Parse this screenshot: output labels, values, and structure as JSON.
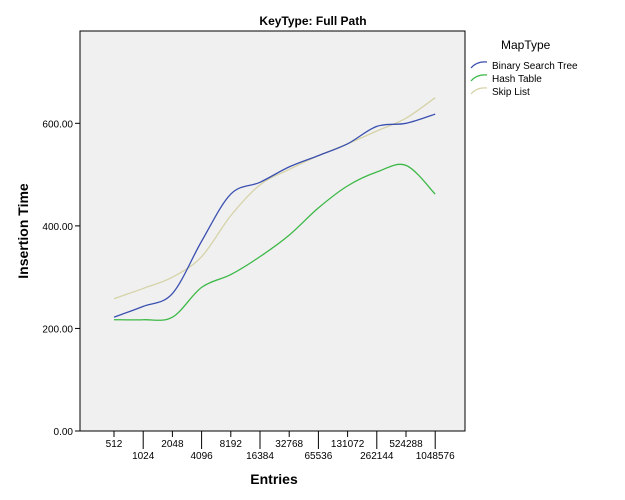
{
  "chart_data": {
    "type": "line",
    "title": "KeyType: Full Path",
    "xlabel": "Entries",
    "ylabel": "Insertion Time",
    "categories": [
      "512",
      "1024",
      "2048",
      "4096",
      "8192",
      "16384",
      "32768",
      "65536",
      "131072",
      "262144",
      "524288",
      "1048576"
    ],
    "ylim": [
      0,
      780
    ],
    "yticks": [
      "0.00",
      "200.00",
      "400.00",
      "600.00"
    ],
    "ytick_values": [
      0,
      200,
      400,
      600
    ],
    "grid": false,
    "legend": {
      "title": "MapType",
      "placement": "right-top"
    },
    "series": [
      {
        "name": "Binary Search Tree",
        "color": "#3a50b0",
        "values": [
          222,
          243,
          268,
          370,
          462,
          485,
          515,
          537,
          560,
          594,
          600,
          618
        ]
      },
      {
        "name": "Hash Table",
        "color": "#3cb846",
        "values": [
          217,
          217,
          222,
          280,
          305,
          340,
          382,
          435,
          478,
          505,
          518,
          462
        ]
      },
      {
        "name": "Skip List",
        "color": "#d6d3a8",
        "values": [
          258,
          278,
          300,
          340,
          420,
          480,
          510,
          537,
          560,
          585,
          610,
          650
        ]
      }
    ]
  }
}
